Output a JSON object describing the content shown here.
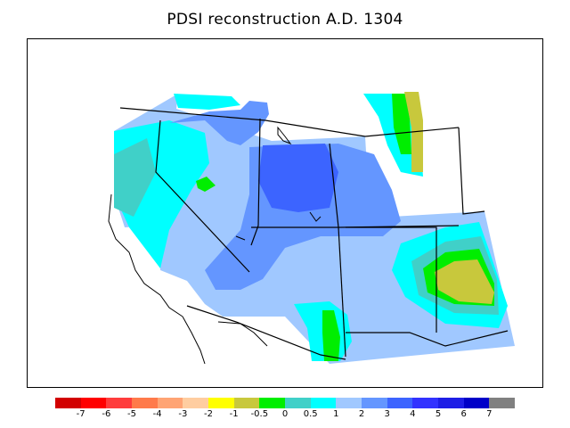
{
  "title": "PDSI reconstruction A.D. 1304",
  "colors": {
    "c_n7": "#d20000",
    "c_n6": "#ff0000",
    "c_n5": "#ff3c3c",
    "c_n4": "#ff7a4a",
    "c_n3": "#ffa474",
    "c_n2": "#ffcda0",
    "c_n1": "#ffff00",
    "c_n05": "#c8c83c",
    "c_0": "#00ee00",
    "c_05": "#40d0c8",
    "c_1": "#00ffff",
    "c_2": "#a0c8ff",
    "c_3": "#6496ff",
    "c_4": "#3c64ff",
    "c_5": "#3232ff",
    "c_6": "#1e1ee6",
    "c_7": "#0000c8",
    "c_over": "#808080"
  },
  "legend": {
    "swatch_colors": [
      "#d20000",
      "#ff0000",
      "#ff3c3c",
      "#ff7a4a",
      "#ffa474",
      "#ffcda0",
      "#ffff00",
      "#c8c83c",
      "#00ee00",
      "#40d0c8",
      "#00ffff",
      "#a0c8ff",
      "#6496ff",
      "#3c64ff",
      "#3232ff",
      "#1e1ee6",
      "#0000c8",
      "#808080"
    ],
    "tick_labels": [
      "-7",
      "-6",
      "-5",
      "-4",
      "-3",
      "-2",
      "-1",
      "-0.5",
      "0",
      "0.5",
      "1",
      "2",
      "3",
      "4",
      "5",
      "6",
      "7"
    ]
  }
}
